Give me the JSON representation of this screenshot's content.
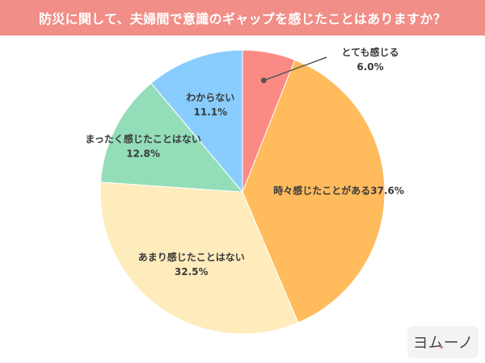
{
  "title": "防災に関して、夫婦間で意識のギャップを感じたことはありますか？",
  "chart_data": {
    "type": "pie",
    "title": "防災に関して、夫婦間で意識のギャップを感じたことはありますか？",
    "start_angle_deg": 0,
    "direction": "clockwise",
    "slices": [
      {
        "label": "とても感じる",
        "value": 6.0,
        "value_label": "6.0%",
        "color": "#fb8a85"
      },
      {
        "label": "時々感じたことがある",
        "value": 37.6,
        "value_label": "37.6%",
        "color": "#ffbb5c"
      },
      {
        "label": "あまり感じたことはない",
        "value": 32.5,
        "value_label": "32.5%",
        "color": "#ffecbd"
      },
      {
        "label": "まったく感じたことはない",
        "value": 12.8,
        "value_label": "12.8%",
        "color": "#93ddb9"
      },
      {
        "label": "わからない",
        "value": 11.1,
        "value_label": "11.1%",
        "color": "#88cdfd"
      }
    ]
  },
  "logo": {
    "text": "ヨムーノ",
    "icon": "yomuno-logo-icon"
  }
}
